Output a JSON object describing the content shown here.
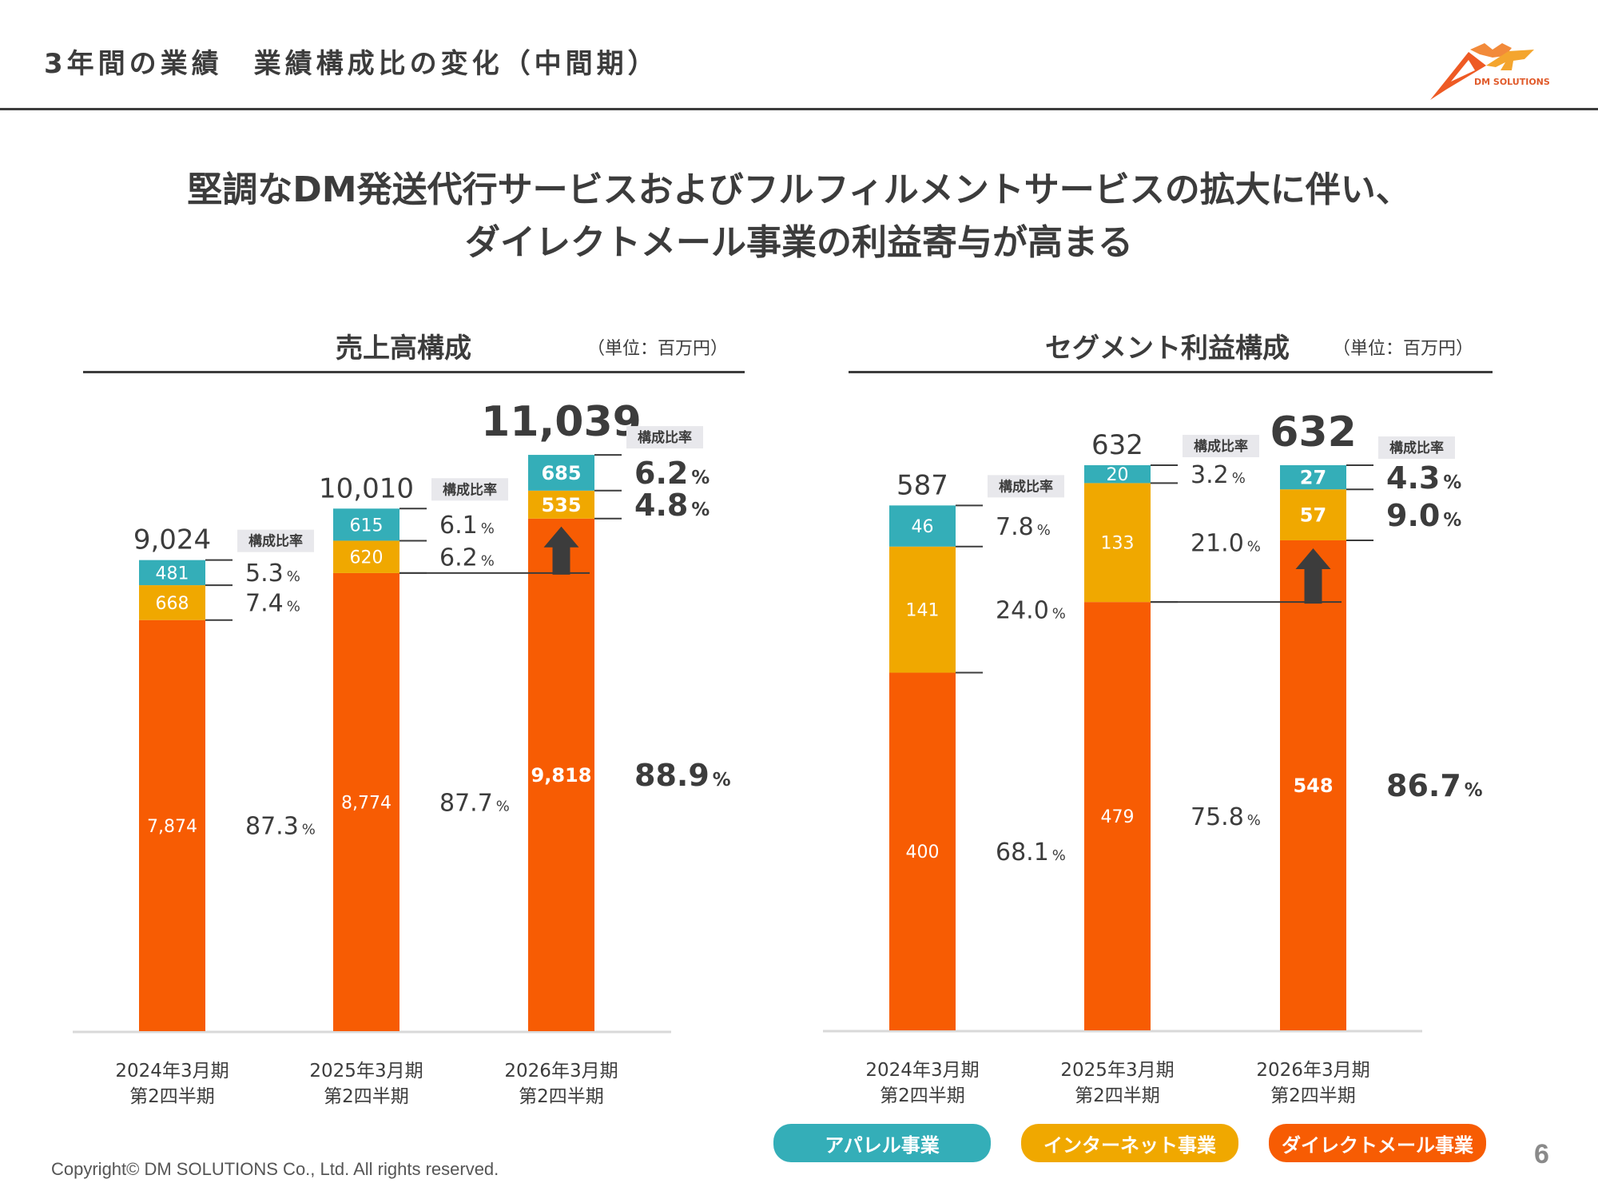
{
  "header": {
    "title": "3年間の業績　業績構成比の変化（中間期）",
    "logo_text": "DM SOLUTIONS"
  },
  "headline": {
    "line1": "堅調なDM発送代行サービスおよびフルフィルメントサービスの拡大に伴い、",
    "line2": "ダイレクトメール事業の利益寄与が高まる"
  },
  "colors": {
    "apparel": "#34aeb8",
    "internet": "#f0a800",
    "direct_mail": "#f75c03",
    "text": "#3c3c3c",
    "ratio_badge_bg": "#e8e8ec"
  },
  "ratio_badge_label": "構成比率",
  "chart_data": [
    {
      "type": "bar",
      "stacked": true,
      "title": "売上高構成",
      "unit_label": "（単位：百万円）",
      "categories": [
        "2024年3月期\n第2四半期",
        "2025年3月期\n第2四半期",
        "2026年3月期\n第2四半期"
      ],
      "category_lines": [
        [
          "2024年3月期",
          "第2四半期"
        ],
        [
          "2025年3月期",
          "第2四半期"
        ],
        [
          "2026年3月期",
          "第2四半期"
        ]
      ],
      "totals": [
        "9,024",
        "10,010",
        "11,039"
      ],
      "ylim": [
        0,
        11039
      ],
      "series": [
        {
          "name": "ダイレクトメール事業",
          "key": "direct_mail",
          "values": [
            7874,
            8774,
            9818
          ],
          "labels": [
            "7,874",
            "8,774",
            "9,818"
          ],
          "ratios": [
            "87.3",
            "87.7",
            "88.9"
          ]
        },
        {
          "name": "インターネット事業",
          "key": "internet",
          "values": [
            668,
            620,
            535
          ],
          "labels": [
            "668",
            "620",
            "535"
          ],
          "ratios": [
            "7.4",
            "6.2",
            "4.8"
          ]
        },
        {
          "name": "アパレル事業",
          "key": "apparel",
          "values": [
            481,
            615,
            685
          ],
          "labels": [
            "481",
            "615",
            "685"
          ],
          "ratios": [
            "5.3",
            "6.1",
            "6.2"
          ]
        }
      ],
      "highlight_category": 2,
      "annotation": "up-arrow on latest direct mail bar"
    },
    {
      "type": "bar",
      "stacked": true,
      "title": "セグメント利益構成",
      "unit_label": "（単位：百万円）",
      "categories": [
        "2024年3月期\n第2四半期",
        "2025年3月期\n第2四半期",
        "2026年3月期\n第2四半期"
      ],
      "category_lines": [
        [
          "2024年3月期",
          "第2四半期"
        ],
        [
          "2025年3月期",
          "第2四半期"
        ],
        [
          "2026年3月期",
          "第2四半期"
        ]
      ],
      "totals": [
        "587",
        "632",
        "632"
      ],
      "ylim": [
        0,
        632
      ],
      "series": [
        {
          "name": "ダイレクトメール事業",
          "key": "direct_mail",
          "values": [
            400,
            479,
            548
          ],
          "labels": [
            "400",
            "479",
            "548"
          ],
          "ratios": [
            "68.1",
            "75.8",
            "86.7"
          ]
        },
        {
          "name": "インターネット事業",
          "key": "internet",
          "values": [
            141,
            133,
            57
          ],
          "labels": [
            "141",
            "133",
            "57"
          ],
          "ratios": [
            "24.0",
            "21.0",
            "9.0"
          ]
        },
        {
          "name": "アパレル事業",
          "key": "apparel",
          "values": [
            46,
            20,
            27
          ],
          "labels": [
            "46",
            "20",
            "27"
          ],
          "ratios": [
            "7.8",
            "3.2",
            "4.3"
          ]
        }
      ],
      "highlight_category": 2,
      "annotation": "up-arrow on latest direct mail bar"
    }
  ],
  "legend": [
    {
      "label": "アパレル事業",
      "key": "apparel"
    },
    {
      "label": "インターネット事業",
      "key": "internet"
    },
    {
      "label": "ダイレクトメール事業",
      "key": "direct_mail"
    }
  ],
  "footer": {
    "copyright": "Copyright© DM SOLUTIONS Co., Ltd. All rights reserved.",
    "page_number": "6"
  }
}
